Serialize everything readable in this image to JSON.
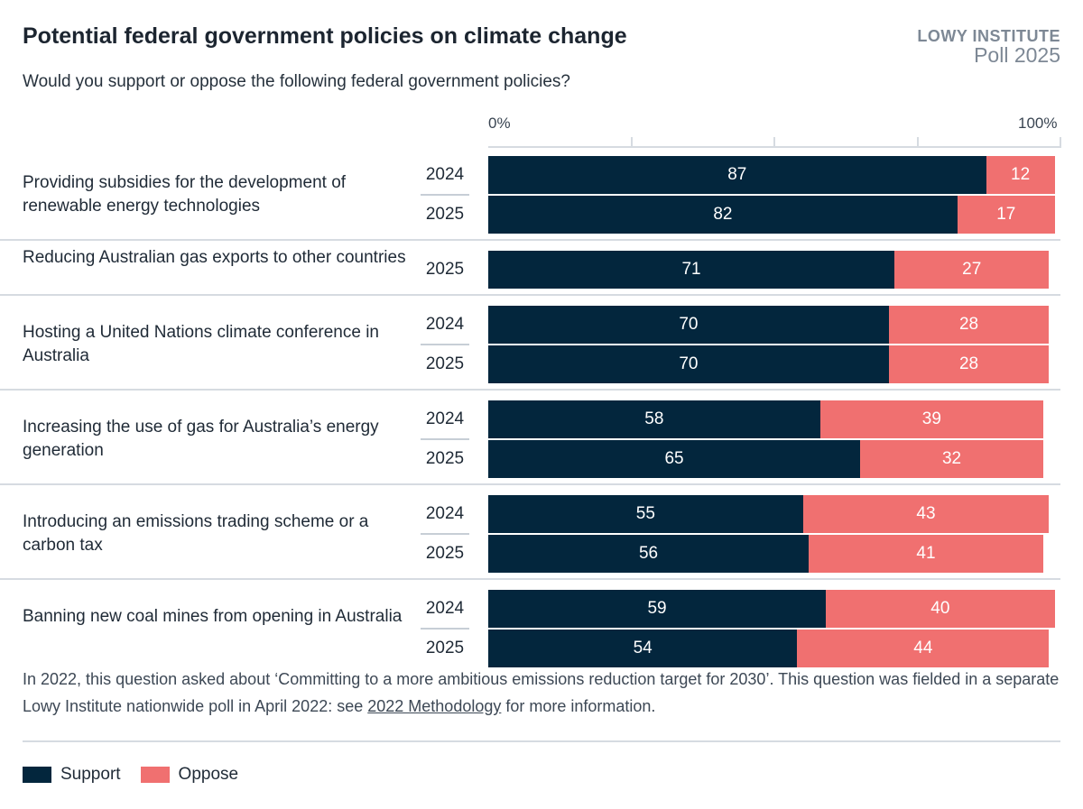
{
  "title": "Potential federal government policies on climate change",
  "subtitle": "Would you support or oppose the following federal government policies?",
  "brand": {
    "line1": "LOWY INSTITUTE",
    "line2": "Poll 2025"
  },
  "colors": {
    "support": "#03263d",
    "oppose": "#f07070"
  },
  "chart_data": {
    "type": "bar",
    "orientation": "horizontal-stacked",
    "xlim": [
      0,
      100
    ],
    "tick_labels": [
      "0%",
      "100%"
    ],
    "series_names": [
      "Support",
      "Oppose"
    ],
    "groups": [
      {
        "category": "Providing subsidies for the development of renewable energy technologies",
        "rows": [
          {
            "year": "2024",
            "support": 87,
            "oppose": 12
          },
          {
            "year": "2025",
            "support": 82,
            "oppose": 17
          }
        ]
      },
      {
        "category": "Reducing Australian gas exports to other countries",
        "rows": [
          {
            "year": "2025",
            "support": 71,
            "oppose": 27
          }
        ]
      },
      {
        "category": "Hosting a United Nations climate conference in Australia",
        "rows": [
          {
            "year": "2024",
            "support": 70,
            "oppose": 28
          },
          {
            "year": "2025",
            "support": 70,
            "oppose": 28
          }
        ]
      },
      {
        "category": "Increasing the use of gas for Australia’s energy generation",
        "rows": [
          {
            "year": "2024",
            "support": 58,
            "oppose": 39
          },
          {
            "year": "2025",
            "support": 65,
            "oppose": 32
          }
        ]
      },
      {
        "category": "Introducing an emissions trading scheme or a carbon tax",
        "rows": [
          {
            "year": "2024",
            "support": 55,
            "oppose": 43
          },
          {
            "year": "2025",
            "support": 56,
            "oppose": 41
          }
        ]
      },
      {
        "category": "Banning new coal mines from opening in Australia",
        "rows": [
          {
            "year": "2024",
            "support": 59,
            "oppose": 40
          },
          {
            "year": "2025",
            "support": 54,
            "oppose": 44
          }
        ]
      }
    ],
    "legend_position": "bottom-left"
  },
  "note": {
    "before": "In 2022, this question asked about ‘Committing to a more ambitious emissions reduction target for 2030’. This question was fielded in a separate Lowy Institute nationwide poll in April 2022: see ",
    "link": "2022 Methodology",
    "after": " for more information."
  },
  "legend": {
    "support": "Support",
    "oppose": "Oppose"
  }
}
